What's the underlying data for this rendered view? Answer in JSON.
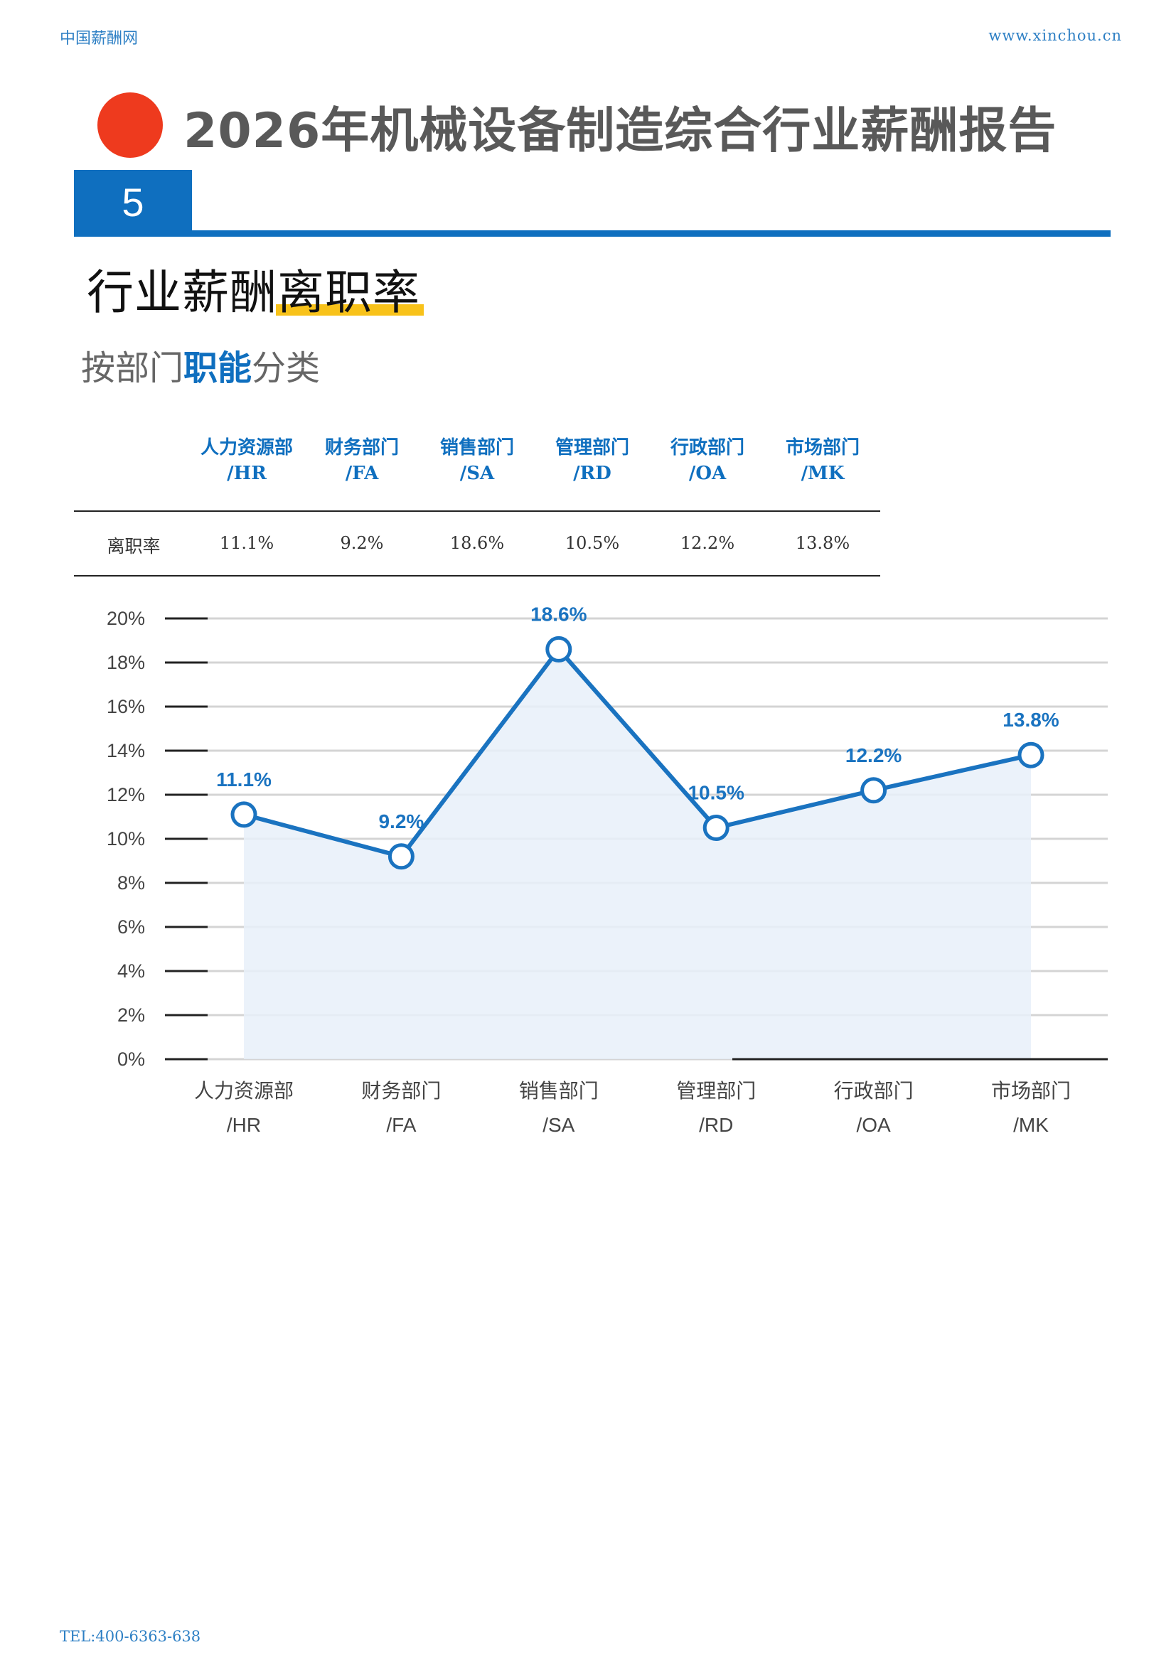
{
  "header": {
    "site_name": "中国薪酬网",
    "site_url": "www.xinchou.cn"
  },
  "report": {
    "title": "2026年机械设备制造综合行业薪酬报告",
    "section_number": "5",
    "section_title": "行业薪酬离职率",
    "subtitle_prefix": "按部门",
    "subtitle_emphasis": "职能",
    "subtitle_suffix": "分类"
  },
  "table": {
    "row_label": "离职率",
    "columns": [
      {
        "name": "人力资源部",
        "code": "/HR",
        "value": "11.1%"
      },
      {
        "name": "财务部门",
        "code": "/FA",
        "value": "9.2%"
      },
      {
        "name": "销售部门",
        "code": "/SA",
        "value": "18.6%"
      },
      {
        "name": "管理部门",
        "code": "/RD",
        "value": "10.5%"
      },
      {
        "name": "行政部门",
        "code": "/OA",
        "value": "12.2%"
      },
      {
        "name": "市场部门",
        "code": "/MK",
        "value": "13.8%"
      }
    ]
  },
  "chart_data": {
    "type": "line",
    "categories": [
      "人力资源部",
      "财务部门",
      "销售部门",
      "管理部门",
      "行政部门",
      "市场部门"
    ],
    "category_codes": [
      "/HR",
      "/FA",
      "/SA",
      "/RD",
      "/OA",
      "/MK"
    ],
    "values": [
      11.1,
      9.2,
      18.6,
      10.5,
      12.2,
      13.8
    ],
    "data_labels": [
      "11.1%",
      "9.2%",
      "18.6%",
      "10.5%",
      "12.2%",
      "13.8%"
    ],
    "y_ticks": [
      "0%",
      "2%",
      "4%",
      "6%",
      "8%",
      "10%",
      "12%",
      "14%",
      "16%",
      "18%",
      "20%"
    ],
    "ylim": [
      0,
      20
    ],
    "grid": true,
    "area_fill": true,
    "colors": {
      "line": "#1a73c0",
      "fill": "#e7f0f9",
      "marker_fill": "#ffffff",
      "label": "#1a73c0"
    }
  },
  "footer": {
    "tel": "TEL:400-6363-638"
  }
}
